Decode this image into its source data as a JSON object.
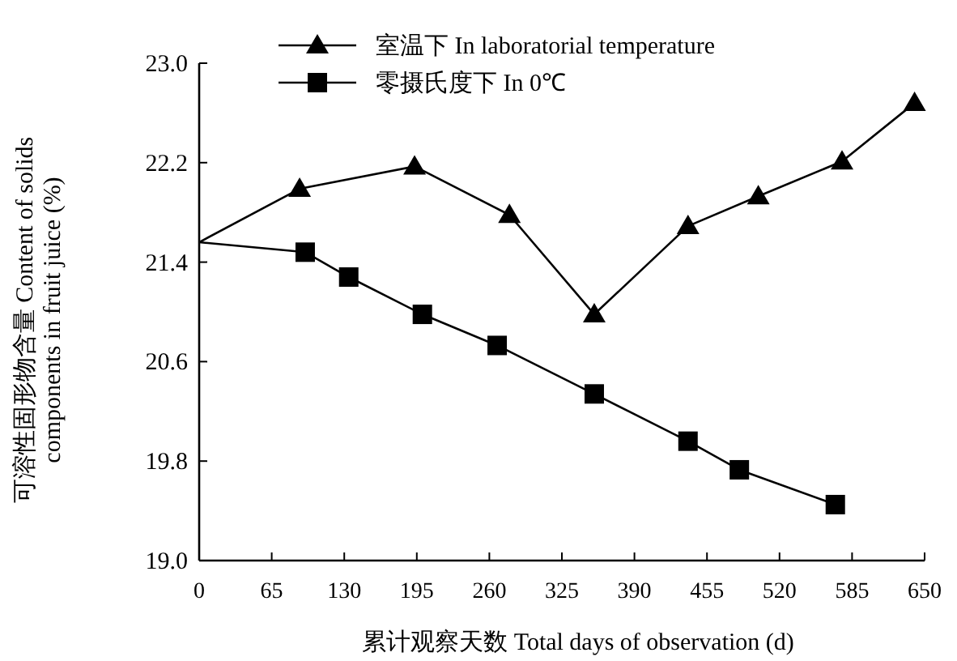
{
  "chart_data": {
    "type": "line",
    "xlabel": "累计观察天数 Total days of observation (d)",
    "ylabel": "可溶性固形物含量 Content of solids\ncomponents in fruit juice (%)",
    "xlim": [
      0,
      650
    ],
    "xticks": [
      0,
      65,
      130,
      195,
      260,
      325,
      390,
      455,
      520,
      585,
      650
    ],
    "ylim": [
      19,
      23
    ],
    "yticks": [
      {
        "value": 19,
        "label": "19.0"
      },
      {
        "value": 19.8,
        "label": "19.8"
      },
      {
        "value": 20.6,
        "label": "20.6"
      },
      {
        "value": 21.4,
        "label": "21.4"
      },
      {
        "value": 22.2,
        "label": "22.2"
      },
      {
        "value": 23,
        "label": "23.0"
      }
    ],
    "legend": "top",
    "grid": false,
    "series": [
      {
        "name": "室温下 In laboratorial temperature",
        "color": "#000000",
        "marker": "triangle",
        "x": [
          0,
          90,
          193,
          278,
          354,
          438,
          501,
          576,
          641
        ],
        "values": [
          21.56,
          21.99,
          22.17,
          21.78,
          20.98,
          21.69,
          21.93,
          22.21,
          22.68
        ]
      },
      {
        "name": "零摄氏度下 In 0℃",
        "color": "#000000",
        "marker": "square",
        "x": [
          0,
          95,
          134,
          200,
          267,
          354,
          438,
          484,
          570
        ],
        "values": [
          21.56,
          21.48,
          21.28,
          20.98,
          20.73,
          20.34,
          19.96,
          19.73,
          19.45
        ]
      }
    ]
  }
}
